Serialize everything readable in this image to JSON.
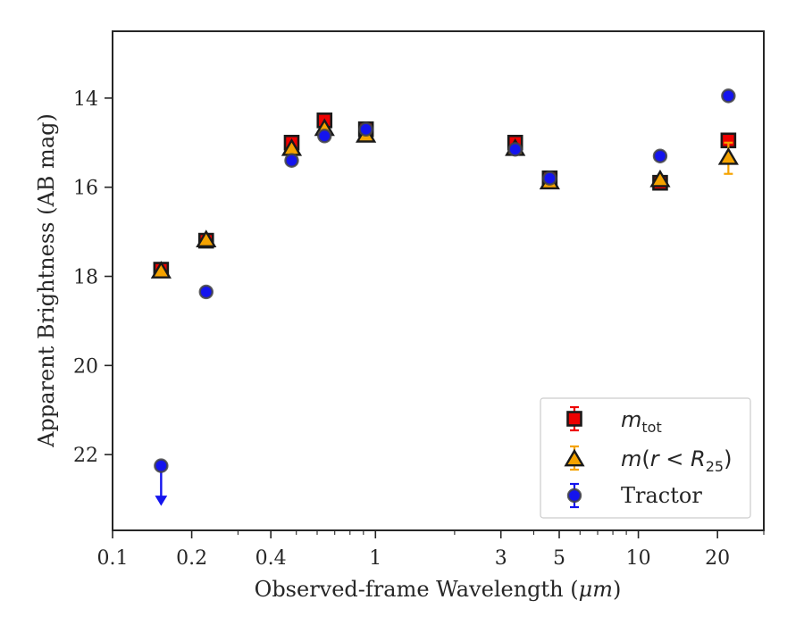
{
  "chart_data": {
    "type": "scatter",
    "xlabel_prefix": "Observed-frame Wavelength (",
    "xlabel_unit": "μm",
    "xlabel_suffix": ")",
    "ylabel": "Apparent Brightness (AB mag)",
    "x_scale": "log",
    "xlim": [
      0.1,
      30
    ],
    "ylim": [
      23.7,
      12.5
    ],
    "y_inverted": true,
    "grid": false,
    "legend_position": "lower-right",
    "x_ticks": [
      {
        "value": 0.1,
        "label": "0.1"
      },
      {
        "value": 0.2,
        "label": "0.2"
      },
      {
        "value": 0.4,
        "label": "0.4"
      },
      {
        "value": 1,
        "label": "1"
      },
      {
        "value": 3,
        "label": "3"
      },
      {
        "value": 5,
        "label": "5"
      },
      {
        "value": 10,
        "label": "10"
      },
      {
        "value": 20,
        "label": "20"
      }
    ],
    "y_ticks": [
      {
        "value": 14,
        "label": "14"
      },
      {
        "value": 16,
        "label": "16"
      },
      {
        "value": 18,
        "label": "18"
      },
      {
        "value": 20,
        "label": "20"
      },
      {
        "value": 22,
        "label": "22"
      }
    ],
    "series": [
      {
        "key": "mtot",
        "legend_main": "m",
        "legend_sub": "tot",
        "legend_rest": "",
        "marker": "square",
        "color": "#ee0000",
        "edge": "#1a1a1a",
        "points": [
          {
            "x": 0.153,
            "y": 17.85
          },
          {
            "x": 0.227,
            "y": 17.2
          },
          {
            "x": 0.48,
            "y": 15.0
          },
          {
            "x": 0.64,
            "y": 14.5
          },
          {
            "x": 0.92,
            "y": 14.7
          },
          {
            "x": 3.4,
            "y": 15.0
          },
          {
            "x": 4.6,
            "y": 15.8
          },
          {
            "x": 12.1,
            "y": 15.9
          },
          {
            "x": 22.0,
            "y": 14.95
          }
        ]
      },
      {
        "key": "mr25",
        "legend_main": "m",
        "legend_paren_open": "(",
        "legend_r": "r",
        "legend_lt": " < ",
        "legend_R": "R",
        "legend_sub": "25",
        "legend_paren_close": ")",
        "marker": "triangle",
        "color": "#f5a300",
        "edge": "#1a1a1a",
        "points": [
          {
            "x": 0.153,
            "y": 17.9
          },
          {
            "x": 0.227,
            "y": 17.2
          },
          {
            "x": 0.48,
            "y": 15.15
          },
          {
            "x": 0.64,
            "y": 14.7
          },
          {
            "x": 0.92,
            "y": 14.85
          },
          {
            "x": 3.4,
            "y": 15.15
          },
          {
            "x": 4.6,
            "y": 15.9
          },
          {
            "x": 12.1,
            "y": 15.85
          },
          {
            "x": 22.0,
            "y": 15.35,
            "err": 0.35
          }
        ]
      },
      {
        "key": "tractor",
        "legend_label": "Tractor",
        "marker": "circle",
        "color": "#1414ee",
        "edge": "#444444",
        "points": [
          {
            "x": 0.153,
            "y": 22.25,
            "upper_limit": true
          },
          {
            "x": 0.227,
            "y": 18.35
          },
          {
            "x": 0.48,
            "y": 15.4
          },
          {
            "x": 0.64,
            "y": 14.85
          },
          {
            "x": 0.92,
            "y": 14.7
          },
          {
            "x": 3.4,
            "y": 15.15
          },
          {
            "x": 4.6,
            "y": 15.8
          },
          {
            "x": 12.1,
            "y": 15.3
          },
          {
            "x": 22.0,
            "y": 13.95
          }
        ]
      }
    ]
  }
}
